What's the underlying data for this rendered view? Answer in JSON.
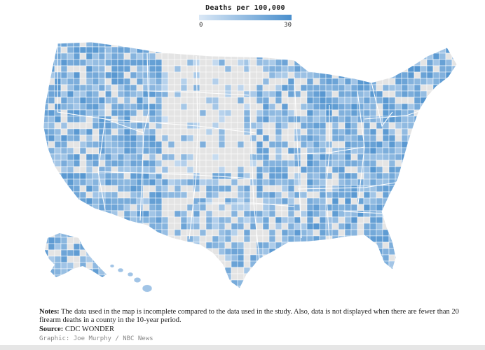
{
  "legend": {
    "title": "Deaths per 100,000",
    "min_label": "0",
    "max_label": "30",
    "color_min": "#dbe8f6",
    "color_max": "#4a8fcd"
  },
  "map": {
    "no_data_color": "#e4e4e4",
    "border_color": "#ffffff"
  },
  "notes": {
    "label": "Notes:",
    "text": "The data used in the map is incomplete compared to the data used in the study. Also, data is not displayed when there are fewer than 20 firearm deaths in a county in the 10-year period."
  },
  "source": {
    "label": "Source:",
    "text": "CDC WONDER"
  },
  "credit": "Graphic: Joe Murphy / NBC News"
}
